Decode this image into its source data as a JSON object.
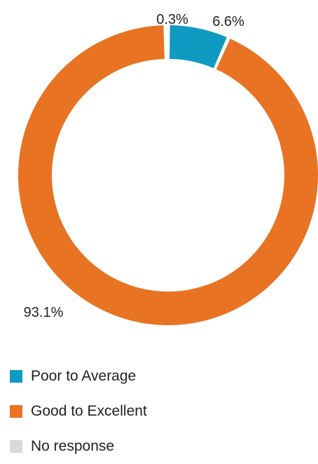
{
  "chart_data": {
    "type": "pie",
    "donut": true,
    "categories": [
      "Poor to Average",
      "Good to Excellent",
      "No response"
    ],
    "values": [
      6.6,
      93.1,
      0.3
    ],
    "labels": [
      "6.6%",
      "93.1%",
      "0.3%"
    ],
    "colors": [
      "#0f9ac1",
      "#e87323",
      "#d9d9d9"
    ],
    "legend_position": "bottom-left"
  }
}
